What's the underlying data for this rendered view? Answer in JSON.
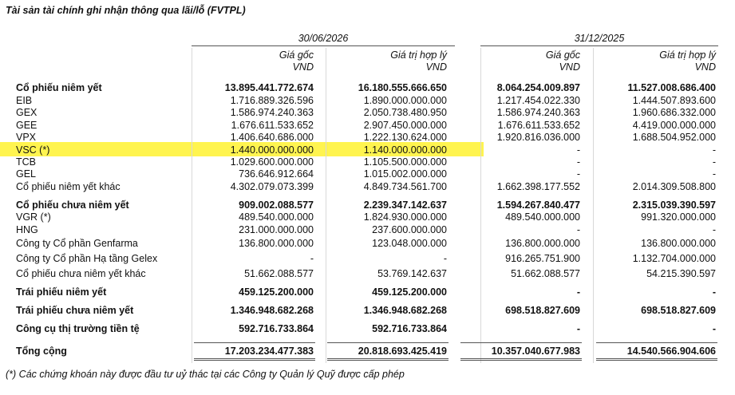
{
  "title": "Tài sản tài chính ghi nhận thông qua lãi/lỗ (FVTPL)",
  "header": {
    "periods": [
      "30/06/2026",
      "31/12/2025"
    ],
    "columns": [
      [
        "Giá gốc",
        "VND"
      ],
      [
        "Giá trị hợp lý",
        "VND"
      ],
      [
        "Giá gốc",
        "VND"
      ],
      [
        "Giá trị hợp lý",
        "VND"
      ]
    ]
  },
  "rows": [
    {
      "bold": true,
      "cells": [
        "Cổ phiếu niêm yết",
        "13.895.441.772.674",
        "16.180.555.666.650",
        "8.064.254.009.897",
        "11.527.008.686.400"
      ]
    },
    {
      "cells": [
        "EIB",
        "1.716.889.326.596",
        "1.890.000.000.000",
        "1.217.454.022.330",
        "1.444.507.893.600"
      ]
    },
    {
      "cells": [
        "GEX",
        "1.586.974.240.363",
        "2.050.738.480.950",
        "1.586.974.240.363",
        "1.960.686.332.000"
      ]
    },
    {
      "cells": [
        "GEE",
        "1.676.611.533.652",
        "2.907.450.000.000",
        "1.676.611.533.652",
        "4.419.000.000.000"
      ]
    },
    {
      "cells": [
        "VPX",
        "1.406.640.686.000",
        "1.222.130.624.000",
        "1.920.816.036.000",
        "1.688.504.952.000"
      ]
    },
    {
      "highlight": true,
      "cells": [
        "VSC (*)",
        "1.440.000.000.000",
        "1.140.000.000.000",
        "-",
        "-"
      ]
    },
    {
      "cells": [
        "TCB",
        "1.029.600.000.000",
        "1.105.500.000.000",
        "-",
        "-"
      ]
    },
    {
      "cells": [
        "GEL",
        "736.646.912.664",
        "1.015.002.000.000",
        "-",
        "-"
      ]
    },
    {
      "cells": [
        "Cổ phiếu niêm yết khác",
        "4.302.079.073.399",
        "4.849.734.561.700",
        "1.662.398.177.552",
        "2.014.309.508.800"
      ]
    },
    {
      "bold": true,
      "cells": [
        "Cổ phiếu chưa niêm yết",
        "909.002.088.577",
        "2.239.347.142.637",
        "1.594.267.840.477",
        "2.315.039.390.597"
      ]
    },
    {
      "cells": [
        "VGR (*)",
        "489.540.000.000",
        "1.824.930.000.000",
        "489.540.000.000",
        "991.320.000.000"
      ]
    },
    {
      "cells": [
        "HNG",
        "231.000.000.000",
        "237.600.000.000",
        "-",
        "-"
      ]
    },
    {
      "cells": [
        "Công ty Cổ phần Genfarma",
        "136.800.000.000",
        "123.048.000.000",
        "136.800.000.000",
        "136.800.000.000"
      ]
    },
    {
      "cells": [
        "Công ty Cổ phần Hạ tầng Gelex",
        "-",
        "-",
        "916.265.751.900",
        "1.132.704.000.000"
      ]
    },
    {
      "cells": [
        "Cổ phiếu chưa niêm yết khác",
        "51.662.088.577",
        "53.769.142.637",
        "51.662.088.577",
        "54.215.390.597"
      ]
    },
    {
      "bold": true,
      "cells": [
        "Trái phiếu niêm yết",
        "459.125.200.000",
        "459.125.200.000",
        "-",
        "-"
      ]
    },
    {
      "bold": true,
      "cells": [
        "Trái phiếu chưa niêm yết",
        "1.346.948.682.268",
        "1.346.948.682.268",
        "698.518.827.609",
        "698.518.827.609"
      ]
    },
    {
      "bold": true,
      "cells": [
        "Công cụ thị trường tiền tệ",
        "592.716.733.864",
        "592.716.733.864",
        "-",
        "-"
      ]
    },
    {
      "bold": true,
      "total": true,
      "cells": [
        "Tổng cộng",
        "17.203.234.477.383",
        "20.818.693.425.419",
        "10.357.040.677.983",
        "14.540.566.904.606"
      ]
    }
  ],
  "footnote": "(*) Các chứng khoán này được đầu tư uỷ thác tại các Công ty Quản lý Quỹ được cấp phép"
}
